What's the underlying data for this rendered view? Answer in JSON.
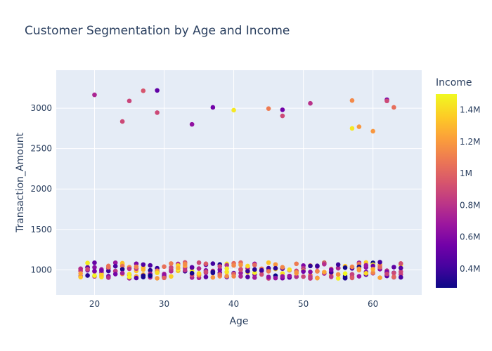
{
  "chart_data": {
    "type": "scatter",
    "title": "Customer Segmentation by Age and Income",
    "xlabel": "Age",
    "ylabel": "Transaction_Amount",
    "xlim": [
      14.5,
      67
    ],
    "ylim": [
      690,
      3470
    ],
    "xticks": [
      20,
      30,
      40,
      50,
      60
    ],
    "yticks": [
      1000,
      1500,
      2000,
      2500,
      3000
    ],
    "grid": true,
    "colorbar": {
      "title": "Income",
      "range": [
        280000,
        1500000
      ],
      "ticks": [
        400000,
        600000,
        800000,
        1000000,
        1200000,
        1400000
      ],
      "tick_labels": [
        "0.4M",
        "0.6M",
        "0.8M",
        "1M",
        "1.2M",
        "1.4M"
      ],
      "colorscale": [
        "#0d0887",
        "#46039f",
        "#7201a8",
        "#9c179e",
        "#bd3786",
        "#d8576b",
        "#ed7953",
        "#fb9f3a",
        "#fdca26",
        "#f0f921"
      ]
    },
    "high_points": [
      {
        "x": 20,
        "y": 3165,
        "income": 750000
      },
      {
        "x": 24,
        "y": 2835,
        "income": 900000
      },
      {
        "x": 25,
        "y": 3090,
        "income": 880000
      },
      {
        "x": 27,
        "y": 3215,
        "income": 950000
      },
      {
        "x": 29,
        "y": 3220,
        "income": 500000
      },
      {
        "x": 29,
        "y": 2945,
        "income": 900000
      },
      {
        "x": 34,
        "y": 2800,
        "income": 650000
      },
      {
        "x": 37,
        "y": 3010,
        "income": 550000
      },
      {
        "x": 40,
        "y": 2975,
        "income": 1450000
      },
      {
        "x": 45,
        "y": 2995,
        "income": 1100000
      },
      {
        "x": 47,
        "y": 2980,
        "income": 550000
      },
      {
        "x": 47,
        "y": 2905,
        "income": 900000
      },
      {
        "x": 51,
        "y": 3060,
        "income": 800000
      },
      {
        "x": 57,
        "y": 3095,
        "income": 1150000
      },
      {
        "x": 57,
        "y": 2750,
        "income": 1450000
      },
      {
        "x": 58,
        "y": 2770,
        "income": 1200000
      },
      {
        "x": 60,
        "y": 2715,
        "income": 1200000
      },
      {
        "x": 62,
        "y": 3105,
        "income": 600000
      },
      {
        "x": 62,
        "y": 3090,
        "income": 900000
      },
      {
        "x": 63,
        "y": 3010,
        "income": 1050000
      }
    ],
    "low_cluster": {
      "age_range": [
        18,
        64
      ],
      "amount_range": [
        850,
        1140
      ],
      "income_range": [
        280000,
        1500000
      ],
      "points_per_age": 6
    }
  }
}
